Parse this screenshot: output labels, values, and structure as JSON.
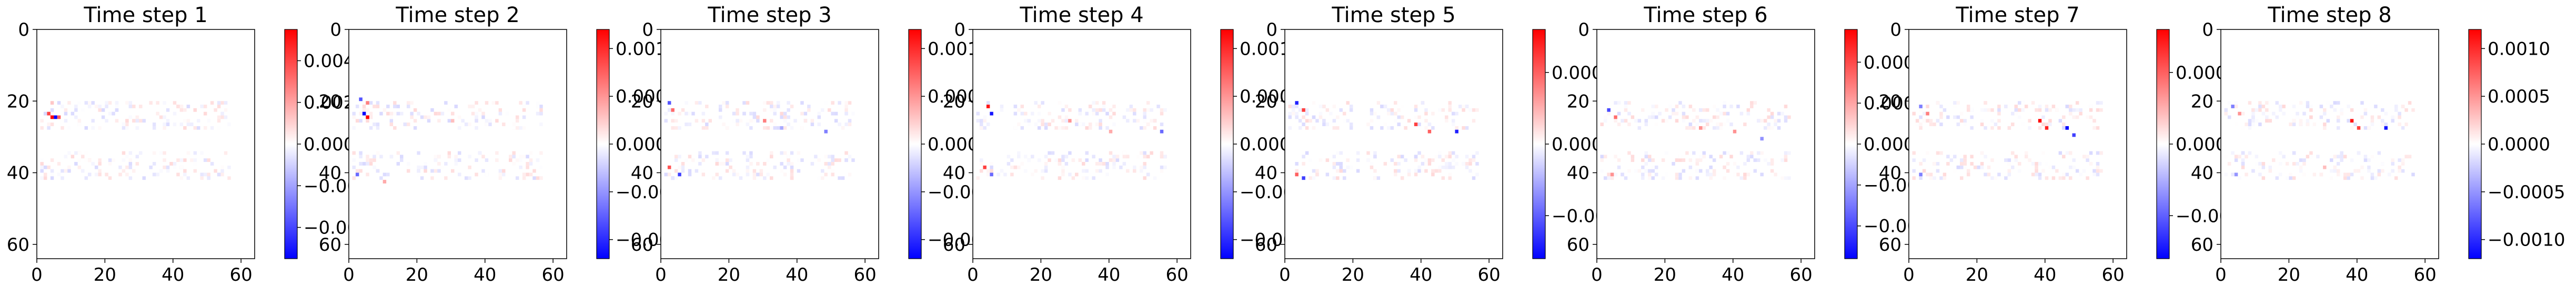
{
  "chart_data": [
    {
      "type": "heatmap",
      "title": "Time step 1",
      "x_ticks": [
        0,
        20,
        40,
        60
      ],
      "y_ticks": [
        0,
        20,
        40,
        60
      ],
      "xlim": [
        0,
        64
      ],
      "ylim": [
        64,
        0
      ],
      "grid": false,
      "colormap": "bwr",
      "colorbar_range": [
        -0.0055,
        0.0055
      ],
      "colorbar_ticks": [
        "0.004",
        "0.002",
        "0.000",
        "−0.002",
        "−0.004"
      ],
      "colorbar_tick_values": [
        0.004,
        0.002,
        0.0,
        -0.002,
        -0.004
      ],
      "hotspots": [
        {
          "x": 4,
          "y": 24,
          "value": 0.0055
        },
        {
          "x": 5,
          "y": 24,
          "value": -0.0055
        },
        {
          "x": 3,
          "y": 23,
          "value": 0.004
        },
        {
          "x": 6,
          "y": 24,
          "value": 0.0035
        },
        {
          "x": 4,
          "y": 20,
          "value": 0.0012
        },
        {
          "x": 2,
          "y": 38,
          "value": -0.0008
        },
        {
          "x": 30,
          "y": 25,
          "value": 0.0006
        }
      ]
    },
    {
      "type": "heatmap",
      "title": "Time step 2",
      "x_ticks": [
        0,
        20,
        40,
        60
      ],
      "y_ticks": [
        0,
        20,
        40,
        60
      ],
      "xlim": [
        0,
        64
      ],
      "ylim": [
        64,
        0
      ],
      "grid": false,
      "colormap": "bwr",
      "colorbar_range": [
        -0.0012,
        0.0012
      ],
      "colorbar_ticks": [
        "0.0010",
        "0.0005",
        "0.0000",
        "−0.0005",
        "−0.0010"
      ],
      "colorbar_tick_values": [
        0.001,
        0.0005,
        0.0,
        -0.0005,
        -0.001
      ],
      "hotspots": [
        {
          "x": 4,
          "y": 23,
          "value": -0.0012
        },
        {
          "x": 5,
          "y": 24,
          "value": 0.0012
        },
        {
          "x": 3,
          "y": 19,
          "value": -0.0008
        },
        {
          "x": 5,
          "y": 20,
          "value": 0.0006
        },
        {
          "x": 2,
          "y": 40,
          "value": -0.0007
        },
        {
          "x": 10,
          "y": 42,
          "value": 0.0004
        },
        {
          "x": 30,
          "y": 25,
          "value": 0.0003
        }
      ]
    },
    {
      "type": "heatmap",
      "title": "Time step 3",
      "x_ticks": [
        0,
        20,
        40,
        60
      ],
      "y_ticks": [
        0,
        20,
        40,
        60
      ],
      "xlim": [
        0,
        64
      ],
      "ylim": [
        64,
        0
      ],
      "grid": false,
      "colormap": "bwr",
      "colorbar_range": [
        -0.0012,
        0.0012
      ],
      "colorbar_ticks": [
        "0.0010",
        "0.0005",
        "0.0000",
        "−0.0005",
        "−0.0010"
      ],
      "colorbar_tick_values": [
        0.001,
        0.0005,
        0.0,
        -0.0005,
        -0.001
      ],
      "hotspots": [
        {
          "x": 2,
          "y": 20,
          "value": -0.0008
        },
        {
          "x": 3,
          "y": 22,
          "value": 0.0007
        },
        {
          "x": 5,
          "y": 40,
          "value": -0.0009
        },
        {
          "x": 2,
          "y": 38,
          "value": 0.0008
        },
        {
          "x": 30,
          "y": 25,
          "value": 0.0006
        },
        {
          "x": 35,
          "y": 27,
          "value": -0.0004
        },
        {
          "x": 48,
          "y": 28,
          "value": -0.0006
        }
      ]
    },
    {
      "type": "heatmap",
      "title": "Time step 4",
      "x_ticks": [
        0,
        20,
        40,
        60
      ],
      "y_ticks": [
        0,
        20,
        40,
        60
      ],
      "xlim": [
        0,
        64
      ],
      "ylim": [
        64,
        0
      ],
      "grid": false,
      "colormap": "bwr",
      "colorbar_range": [
        -0.0012,
        0.0012
      ],
      "colorbar_ticks": [
        "0.0010",
        "0.0005",
        "0.0000",
        "−0.0005",
        "−0.0010"
      ],
      "colorbar_tick_values": [
        0.001,
        0.0005,
        0.0,
        -0.0005,
        -0.001
      ],
      "hotspots": [
        {
          "x": 4,
          "y": 21,
          "value": 0.0011
        },
        {
          "x": 5,
          "y": 23,
          "value": -0.0011
        },
        {
          "x": 3,
          "y": 38,
          "value": 0.0009
        },
        {
          "x": 5,
          "y": 40,
          "value": -0.0007
        },
        {
          "x": 28,
          "y": 25,
          "value": 0.0005
        },
        {
          "x": 40,
          "y": 28,
          "value": 0.0004
        },
        {
          "x": 55,
          "y": 28,
          "value": -0.0007
        }
      ]
    },
    {
      "type": "heatmap",
      "title": "Time step 5",
      "x_ticks": [
        0,
        20,
        40,
        60
      ],
      "y_ticks": [
        0,
        20,
        40,
        60
      ],
      "xlim": [
        0,
        64
      ],
      "ylim": [
        64,
        0
      ],
      "grid": false,
      "colormap": "bwr",
      "colorbar_range": [
        -0.0008,
        0.0008
      ],
      "colorbar_ticks": [
        "0.0005",
        "0.0000",
        "−0.0005"
      ],
      "colorbar_tick_values": [
        0.0005,
        0.0,
        -0.0005
      ],
      "hotspots": [
        {
          "x": 3,
          "y": 20,
          "value": -0.0007
        },
        {
          "x": 5,
          "y": 22,
          "value": 0.0006
        },
        {
          "x": 3,
          "y": 40,
          "value": 0.0005
        },
        {
          "x": 5,
          "y": 41,
          "value": -0.0006
        },
        {
          "x": 38,
          "y": 26,
          "value": 0.0006
        },
        {
          "x": 42,
          "y": 28,
          "value": 0.0005
        },
        {
          "x": 50,
          "y": 28,
          "value": -0.0007
        }
      ]
    },
    {
      "type": "heatmap",
      "title": "Time step 6",
      "x_ticks": [
        0,
        20,
        40,
        60
      ],
      "y_ticks": [
        0,
        20,
        40,
        60
      ],
      "xlim": [
        0,
        64
      ],
      "ylim": [
        64,
        0
      ],
      "grid": false,
      "colormap": "bwr",
      "colorbar_range": [
        -0.0007,
        0.0007
      ],
      "colorbar_ticks": [
        "0.00050",
        "0.00025",
        "0.00000",
        "−0.00025",
        "−0.00050"
      ],
      "colorbar_tick_values": [
        0.0005,
        0.00025,
        0.0,
        -0.00025,
        -0.0005
      ],
      "hotspots": [
        {
          "x": 3,
          "y": 22,
          "value": -0.0005
        },
        {
          "x": 5,
          "y": 24,
          "value": 0.0004
        },
        {
          "x": 4,
          "y": 40,
          "value": 0.0003
        },
        {
          "x": 30,
          "y": 27,
          "value": 0.0003
        },
        {
          "x": 40,
          "y": 28,
          "value": 0.0003
        },
        {
          "x": 48,
          "y": 30,
          "value": -0.0003
        }
      ]
    },
    {
      "type": "heatmap",
      "title": "Time step 7",
      "x_ticks": [
        0,
        20,
        40,
        60
      ],
      "y_ticks": [
        0,
        20,
        40,
        60
      ],
      "xlim": [
        0,
        64
      ],
      "ylim": [
        64,
        0
      ],
      "grid": false,
      "colormap": "bwr",
      "colorbar_range": [
        -0.0008,
        0.0008
      ],
      "colorbar_ticks": [
        "0.0005",
        "0.0000",
        "−0.0005"
      ],
      "colorbar_tick_values": [
        0.0005,
        0.0,
        -0.0005
      ],
      "hotspots": [
        {
          "x": 3,
          "y": 21,
          "value": -0.0004
        },
        {
          "x": 5,
          "y": 23,
          "value": 0.0004
        },
        {
          "x": 38,
          "y": 25,
          "value": 0.0008
        },
        {
          "x": 40,
          "y": 27,
          "value": 0.0007
        },
        {
          "x": 46,
          "y": 27,
          "value": -0.0008
        },
        {
          "x": 48,
          "y": 29,
          "value": -0.0006
        },
        {
          "x": 3,
          "y": 40,
          "value": -0.0004
        }
      ]
    },
    {
      "type": "heatmap",
      "title": "Time step 8",
      "x_ticks": [
        0,
        20,
        40,
        60
      ],
      "y_ticks": [
        0,
        20,
        40,
        60
      ],
      "xlim": [
        0,
        64
      ],
      "ylim": [
        64,
        0
      ],
      "grid": false,
      "colormap": "bwr",
      "colorbar_range": [
        -0.0012,
        0.0012
      ],
      "colorbar_ticks": [
        "0.0010",
        "0.0005",
        "0.0000",
        "−0.0005",
        "−0.0010"
      ],
      "colorbar_tick_values": [
        0.001,
        0.0005,
        0.0,
        -0.0005,
        -0.001
      ],
      "hotspots": [
        {
          "x": 3,
          "y": 21,
          "value": -0.0006
        },
        {
          "x": 5,
          "y": 23,
          "value": 0.0005
        },
        {
          "x": 38,
          "y": 25,
          "value": 0.0011
        },
        {
          "x": 40,
          "y": 27,
          "value": 0.0009
        },
        {
          "x": 48,
          "y": 27,
          "value": -0.0011
        },
        {
          "x": 4,
          "y": 40,
          "value": -0.0005
        },
        {
          "x": 30,
          "y": 38,
          "value": 0.0003
        }
      ]
    }
  ]
}
